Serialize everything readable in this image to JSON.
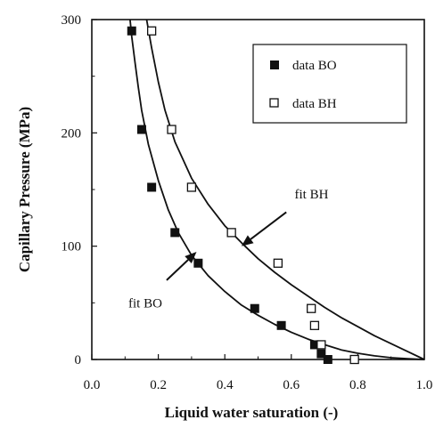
{
  "chart_data": {
    "type": "scatter",
    "title": "",
    "xlabel": "Liquid water saturation (-)",
    "ylabel": "Capillary Pressure (MPa)",
    "xlim": [
      0.0,
      1.0
    ],
    "ylim": [
      0,
      300
    ],
    "x_ticks": [
      0.0,
      0.2,
      0.4,
      0.6,
      0.8,
      1.0
    ],
    "x_tick_labels": [
      "0.0",
      "0.2",
      "0.4",
      "0.6",
      "0.8",
      "1.0"
    ],
    "y_ticks": [
      0,
      100,
      200,
      300
    ],
    "y_tick_labels": [
      "0",
      "100",
      "200",
      "300"
    ],
    "grid": false,
    "legend_position": "top-right",
    "series": [
      {
        "name": "data BO",
        "kind": "points",
        "marker": "filled-square",
        "x": [
          0.12,
          0.15,
          0.18,
          0.25,
          0.32,
          0.49,
          0.57,
          0.67,
          0.69,
          0.71
        ],
        "y": [
          290,
          203,
          152,
          112,
          85,
          45,
          30,
          13,
          5,
          0
        ]
      },
      {
        "name": "data BH",
        "kind": "points",
        "marker": "open-square",
        "x": [
          0.18,
          0.24,
          0.3,
          0.42,
          0.56,
          0.66,
          0.67,
          0.69,
          0.79
        ],
        "y": [
          290,
          203,
          152,
          112,
          85,
          45,
          30,
          13,
          0
        ]
      },
      {
        "name": "fit BO",
        "kind": "line",
        "x": [
          0.115,
          0.12,
          0.13,
          0.14,
          0.15,
          0.17,
          0.2,
          0.23,
          0.26,
          0.3,
          0.35,
          0.4,
          0.45,
          0.5,
          0.55,
          0.6,
          0.65,
          0.7,
          0.75,
          0.8,
          0.85,
          0.9,
          0.95,
          1.0
        ],
        "y": [
          300,
          285,
          262,
          240,
          220,
          190,
          158,
          132,
          112,
          92,
          74,
          60,
          48,
          39,
          31,
          24,
          18,
          13,
          8.5,
          5.5,
          3.2,
          1.6,
          0.6,
          0
        ]
      },
      {
        "name": "fit BH",
        "kind": "line",
        "x": [
          0.165,
          0.18,
          0.2,
          0.22,
          0.25,
          0.3,
          0.35,
          0.4,
          0.45,
          0.5,
          0.55,
          0.6,
          0.65,
          0.7,
          0.75,
          0.8,
          0.85,
          0.9,
          0.95,
          1.0
        ],
        "y": [
          300,
          275,
          245,
          220,
          192,
          160,
          137,
          118,
          103,
          89,
          77,
          66,
          56,
          46,
          37,
          29,
          21,
          14,
          7,
          0
        ]
      }
    ],
    "annotations": [
      {
        "text": "fit BH",
        "x": 0.61,
        "y": 142,
        "arrow_from": [
          0.585,
          130
        ],
        "arrow_to": [
          0.45,
          100
        ]
      },
      {
        "text": "fit BO",
        "x": 0.11,
        "y": 46,
        "arrow_from": [
          0.225,
          70
        ],
        "arrow_to": [
          0.315,
          95
        ]
      }
    ],
    "colors": {
      "ink": "#111111",
      "background": "#ffffff"
    }
  }
}
